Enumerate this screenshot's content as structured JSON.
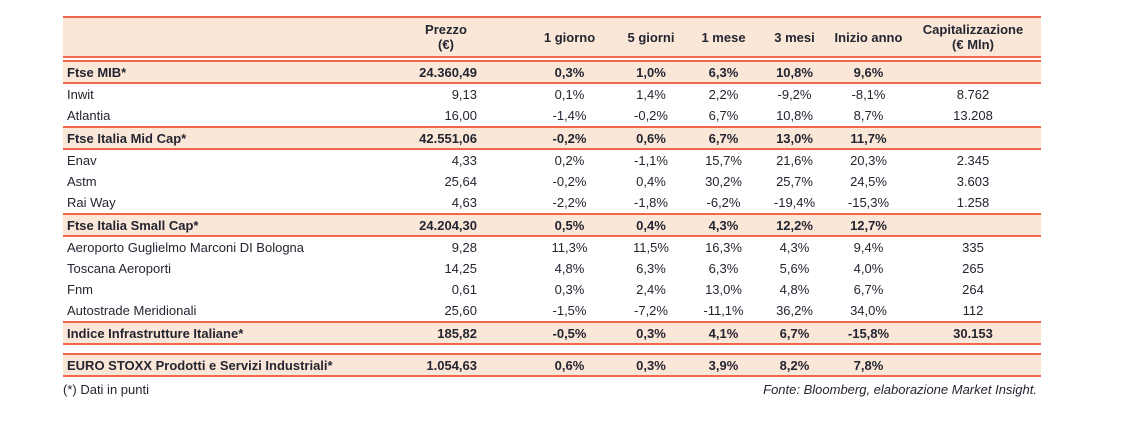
{
  "table": {
    "header": {
      "name": "",
      "prezzo": [
        "Prezzo",
        "(€)"
      ],
      "g1": "1 giorno",
      "g5": "5 giorni",
      "m1": "1 mese",
      "m3": "3 mesi",
      "anno": "Inizio anno",
      "cap": [
        "Capitalizzazione",
        "(€ Mln)"
      ]
    },
    "rows": [
      {
        "type": "index",
        "name": "Ftse MIB*",
        "prezzo": "24.360,49",
        "g1": "0,3%",
        "g5": "1,0%",
        "m1": "6,3%",
        "m3": "10,8%",
        "anno": "9,6%",
        "cap": ""
      },
      {
        "type": "stock",
        "name": "Inwit",
        "prezzo": "9,13",
        "g1": "0,1%",
        "g5": "1,4%",
        "m1": "2,2%",
        "m3": "-9,2%",
        "anno": "-8,1%",
        "cap": "8.762"
      },
      {
        "type": "stock",
        "name": "Atlantia",
        "prezzo": "16,00",
        "g1": "-1,4%",
        "g5": "-0,2%",
        "m1": "6,7%",
        "m3": "10,8%",
        "anno": "8,7%",
        "cap": "13.208"
      },
      {
        "type": "index",
        "name": "Ftse Italia Mid Cap*",
        "prezzo": "42.551,06",
        "g1": "-0,2%",
        "g5": "0,6%",
        "m1": "6,7%",
        "m3": "13,0%",
        "anno": "11,7%",
        "cap": ""
      },
      {
        "type": "stock",
        "name": "Enav",
        "prezzo": "4,33",
        "g1": "0,2%",
        "g5": "-1,1%",
        "m1": "15,7%",
        "m3": "21,6%",
        "anno": "20,3%",
        "cap": "2.345"
      },
      {
        "type": "stock",
        "name": "Astm",
        "prezzo": "25,64",
        "g1": "-0,2%",
        "g5": "0,4%",
        "m1": "30,2%",
        "m3": "25,7%",
        "anno": "24,5%",
        "cap": "3.603"
      },
      {
        "type": "stock",
        "name": "Rai Way",
        "prezzo": "4,63",
        "g1": "-2,2%",
        "g5": "-1,8%",
        "m1": "-6,2%",
        "m3": "-19,4%",
        "anno": "-15,3%",
        "cap": "1.258"
      },
      {
        "type": "index",
        "name": "Ftse Italia Small Cap*",
        "prezzo": "24.204,30",
        "g1": "0,5%",
        "g5": "0,4%",
        "m1": "4,3%",
        "m3": "12,2%",
        "anno": "12,7%",
        "cap": ""
      },
      {
        "type": "stock",
        "name": "Aeroporto Guglielmo Marconi DI Bologna",
        "prezzo": "9,28",
        "g1": "11,3%",
        "g5": "11,5%",
        "m1": "16,3%",
        "m3": "4,3%",
        "anno": "9,4%",
        "cap": "335"
      },
      {
        "type": "stock",
        "name": "Toscana Aeroporti",
        "prezzo": "14,25",
        "g1": "4,8%",
        "g5": "6,3%",
        "m1": "6,3%",
        "m3": "5,6%",
        "anno": "4,0%",
        "cap": "265"
      },
      {
        "type": "stock",
        "name": "Fnm",
        "prezzo": "0,61",
        "g1": "0,3%",
        "g5": "2,4%",
        "m1": "13,0%",
        "m3": "4,8%",
        "anno": "6,7%",
        "cap": "264"
      },
      {
        "type": "stock",
        "name": "Autostrade Meridionali",
        "prezzo": "25,60",
        "g1": "-1,5%",
        "g5": "-7,2%",
        "m1": "-11,1%",
        "m3": "36,2%",
        "anno": "34,0%",
        "cap": "112"
      },
      {
        "type": "index",
        "name": "Indice Infrastrutture Italiane*",
        "prezzo": "185,82",
        "g1": "-0,5%",
        "g5": "0,3%",
        "m1": "4,1%",
        "m3": "6,7%",
        "anno": "-15,8%",
        "cap": "30.153"
      },
      {
        "type": "index",
        "gap_before": true,
        "name": "EURO STOXX Prodotti e Servizi Industriali*",
        "prezzo": "1.054,63",
        "g1": "0,6%",
        "g5": "0,3%",
        "m1": "3,9%",
        "m3": "8,2%",
        "anno": "7,8%",
        "cap": ""
      }
    ]
  },
  "footnote": "(*) Dati in punti",
  "source": "Fonte: Bloomberg, elaborazione Market Insight.",
  "colors": {
    "accent_border": "#f0674d",
    "band_fill": "#fbe7d8",
    "text": "#232531"
  }
}
